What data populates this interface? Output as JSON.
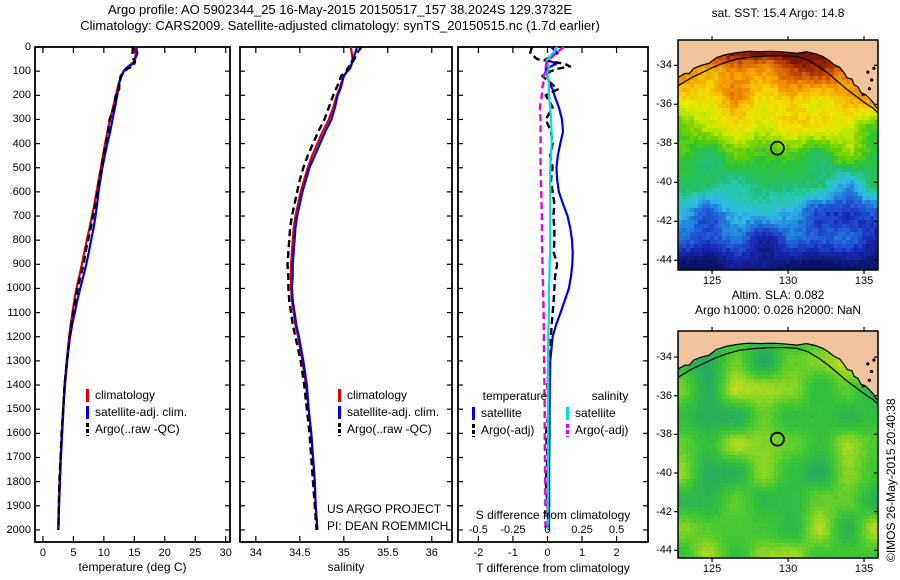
{
  "title": {
    "line1": "Argo profile: AO 5902344_25 16-May-2015 20150517_157 38.2024S 129.3732E",
    "line2": "Climatology: CARS2009. Satellite-adjusted climatology: synTS_20150515.nc (1.7d earlier)"
  },
  "annotations": {
    "line1": "US ARGO PROJECT",
    "line2": "PI: DEAN ROEMMICH"
  },
  "credit": "©IMOS 26-May-2015 20:40:38",
  "colors": {
    "red": "#dd0000",
    "blue": "#0000dd",
    "black": "#000000",
    "cyan": "#00dcdc",
    "magenta": "#e600e6",
    "land": "#f2c49e",
    "frame": "#000000"
  },
  "chart_data": {
    "type": "line",
    "depths": [
      0,
      25,
      50,
      60,
      70,
      80,
      90,
      100,
      120,
      150,
      175,
      200,
      250,
      300,
      350,
      400,
      450,
      500,
      550,
      600,
      650,
      700,
      750,
      800,
      850,
      900,
      950,
      1000,
      1050,
      1100,
      1150,
      1200,
      1300,
      1400,
      1500,
      1600,
      1700,
      1800,
      1900,
      1950,
      2000
    ],
    "ylim": [
      0,
      2050
    ],
    "yticks": [
      0,
      100,
      200,
      300,
      400,
      500,
      600,
      700,
      800,
      900,
      1000,
      1100,
      1200,
      1300,
      1400,
      1500,
      1600,
      1700,
      1800,
      1900,
      2000
    ],
    "panels": [
      {
        "id": "temperature",
        "xlabel": "temperature (deg C)",
        "xlim": [
          -1.3,
          30.7
        ],
        "xticks": [
          0,
          5,
          10,
          15,
          20,
          25,
          30
        ],
        "series": [
          {
            "name": "climatology",
            "color": "red",
            "style": "solid",
            "values": [
              15.2,
              15.2,
              15.15,
              15.0,
              14.5,
              14.0,
              13.6,
              13.3,
              12.9,
              12.45,
              12.2,
              12.0,
              11.5,
              11.0,
              10.6,
              10.2,
              9.85,
              9.5,
              9.15,
              8.8,
              8.45,
              8.05,
              7.65,
              7.2,
              6.8,
              6.4,
              5.95,
              5.5,
              5.15,
              4.85,
              4.55,
              4.3,
              3.9,
              3.55,
              3.3,
              3.1,
              2.9,
              2.75,
              2.6,
              2.55,
              2.5
            ]
          },
          {
            "name": "satellite-adj. clim.",
            "color": "blue",
            "style": "solid",
            "values": [
              15.3,
              15.5,
              15.1,
              15.1,
              14.75,
              14.1,
              13.55,
              13.25,
              12.9,
              12.5,
              12.35,
              12.2,
              11.83,
              11.42,
              11.05,
              10.57,
              10.15,
              9.76,
              9.43,
              9.13,
              8.9,
              8.63,
              8.31,
              7.91,
              7.53,
              7.12,
              6.63,
              6.12,
              5.65,
              5.23,
              4.8,
              4.45,
              3.98,
              3.62,
              3.36,
              3.16,
              2.95,
              2.8,
              2.65,
              2.59,
              2.55
            ]
          },
          {
            "name": "Argo(..raw -QC)",
            "color": "black",
            "style": "dashed",
            "values": [
              14.75,
              14.7,
              14.85,
              15.1,
              15.0,
              14.65,
              13.9,
              13.4,
              12.75,
              12.55,
              12.5,
              11.95,
              11.65,
              10.95,
              10.7,
              10.35,
              9.93,
              9.65,
              9.25,
              8.95,
              8.65,
              8.22,
              7.85,
              7.4,
              6.98,
              6.68,
              6.17,
              5.7,
              5.33,
              5.0,
              4.67,
              4.4,
              3.95,
              3.55,
              3.34,
              3.06,
              2.9,
              2.7,
              2.6,
              2.58,
              2.54
            ]
          }
        ]
      },
      {
        "id": "salinity",
        "xlabel": "salinity",
        "xlim": [
          33.82,
          36.23
        ],
        "xticks": [
          34,
          34.5,
          35,
          35.5,
          36
        ],
        "series": [
          {
            "name": "climatology",
            "color": "red",
            "style": "solid",
            "values": [
              35.08,
              35.09,
              35.1,
              35.1,
              35.09,
              35.07,
              35.06,
              35.04,
              35.0,
              34.97,
              34.95,
              34.92,
              34.88,
              34.83,
              34.76,
              34.7,
              34.64,
              34.59,
              34.55,
              34.51,
              34.48,
              34.45,
              34.43,
              34.42,
              34.41,
              34.4,
              34.4,
              34.4,
              34.41,
              34.43,
              34.45,
              34.48,
              34.53,
              34.57,
              34.6,
              34.63,
              34.65,
              34.67,
              34.68,
              34.69,
              34.7
            ]
          },
          {
            "name": "satellite-adj. clim.",
            "color": "blue",
            "style": "solid",
            "values": [
              35.15,
              35.13,
              35.1,
              35.09,
              35.09,
              35.08,
              35.07,
              35.04,
              35.0,
              34.98,
              34.96,
              34.93,
              34.9,
              34.86,
              34.79,
              34.73,
              34.67,
              34.61,
              34.57,
              34.53,
              34.5,
              34.47,
              34.45,
              34.44,
              34.43,
              34.42,
              34.42,
              34.41,
              34.42,
              34.44,
              34.46,
              34.49,
              34.54,
              34.58,
              34.6,
              34.63,
              34.65,
              34.67,
              34.68,
              34.69,
              34.7
            ]
          },
          {
            "name": "Argo(..raw -QC)",
            "color": "black",
            "style": "dashed",
            "values": [
              35.2,
              35.15,
              35.12,
              35.1,
              35.08,
              35.06,
              35.04,
              35.03,
              34.97,
              34.94,
              34.91,
              34.88,
              34.83,
              34.78,
              34.71,
              34.65,
              34.59,
              34.54,
              34.5,
              34.47,
              34.44,
              34.41,
              34.39,
              34.38,
              34.37,
              34.36,
              34.37,
              34.37,
              34.38,
              34.4,
              34.42,
              34.45,
              34.51,
              34.55,
              34.58,
              34.61,
              34.63,
              34.65,
              34.67,
              34.68,
              34.69
            ]
          }
        ]
      },
      {
        "id": "difference",
        "xlabel": "T difference from climatology",
        "xlabel2": "S difference from climatology",
        "xlim": [
          -2.59,
          2.91
        ],
        "xticks": [
          -2,
          -1,
          0,
          1,
          2
        ],
        "xticks2": [
          -0.5,
          -0.25,
          0,
          0.25,
          0.5
        ],
        "s_to_t_scale": 4,
        "group_headers": [
          "temperature",
          "salinity"
        ],
        "series": [
          {
            "name": "satellite",
            "group": "temperature",
            "unit": "T",
            "color": "blue",
            "style": "solid",
            "values": [
              0.1,
              0.3,
              -0.05,
              0.1,
              0.25,
              0.1,
              -0.05,
              -0.05,
              0.0,
              0.05,
              0.15,
              0.2,
              0.33,
              0.42,
              0.45,
              0.37,
              0.3,
              0.26,
              0.28,
              0.33,
              0.45,
              0.58,
              0.66,
              0.71,
              0.73,
              0.72,
              0.68,
              0.62,
              0.5,
              0.38,
              0.25,
              0.15,
              0.08,
              0.07,
              0.06,
              0.06,
              0.05,
              0.05,
              0.05,
              0.04,
              0.05
            ]
          },
          {
            "name": "Argo(-adj)",
            "group": "temperature",
            "unit": "T",
            "color": "black",
            "style": "dashed",
            "values": [
              -0.45,
              -0.5,
              -0.3,
              0.1,
              0.5,
              0.65,
              0.3,
              0.1,
              -0.15,
              0.1,
              0.3,
              -0.05,
              0.15,
              -0.05,
              0.1,
              0.15,
              0.08,
              0.15,
              0.1,
              0.15,
              0.2,
              0.17,
              0.2,
              0.2,
              0.18,
              0.28,
              0.22,
              0.2,
              0.18,
              0.15,
              0.12,
              0.1,
              0.05,
              0.0,
              0.04,
              -0.04,
              0.0,
              -0.05,
              0.0,
              0.03,
              0.04
            ]
          },
          {
            "name": "satellite",
            "group": "salinity",
            "unit": "S",
            "color": "cyan",
            "style": "solid",
            "values": [
              0.07,
              0.04,
              0.0,
              -0.01,
              0.0,
              0.01,
              0.01,
              0.0,
              0.0,
              0.01,
              0.01,
              0.01,
              0.02,
              0.025,
              0.03,
              0.03,
              0.025,
              0.02,
              0.02,
              0.02,
              0.02,
              0.02,
              0.02,
              0.02,
              0.02,
              0.015,
              0.015,
              0.01,
              0.01,
              0.01,
              0.008,
              0.006,
              0.005,
              0.005,
              0.004,
              0.004,
              0.003,
              0.003,
              0.002,
              0.002,
              0.002
            ]
          },
          {
            "name": "Argo(-adj)",
            "group": "salinity",
            "unit": "S",
            "color": "magenta",
            "style": "dashed",
            "values": [
              0.12,
              0.06,
              0.02,
              0.0,
              -0.01,
              -0.01,
              -0.02,
              -0.01,
              -0.03,
              -0.03,
              -0.04,
              -0.04,
              -0.055,
              -0.05,
              -0.05,
              -0.05,
              -0.05,
              -0.05,
              -0.048,
              -0.045,
              -0.043,
              -0.04,
              -0.04,
              -0.04,
              -0.038,
              -0.036,
              -0.034,
              -0.032,
              -0.03,
              -0.028,
              -0.027,
              -0.026,
              -0.024,
              -0.022,
              -0.02,
              -0.02,
              -0.018,
              -0.016,
              -0.015,
              -0.015,
              -0.015
            ]
          }
        ]
      }
    ],
    "maps": [
      {
        "id": "sst",
        "title": "sat. SST: 15.4 Argo: 14.8",
        "lon_ticks": [
          125,
          130,
          135
        ],
        "lat_ticks": [
          -34,
          -36,
          -38,
          -40,
          -42,
          -44
        ],
        "lonlim": [
          122.76,
          135.92
        ],
        "latlim": [
          -32.7,
          -44.5
        ],
        "base": "latitude",
        "seed": 13,
        "noise": {
          "smooth": 0.22,
          "speckle": 0.055
        },
        "palette": [
          [
            0,
            "#7a1400"
          ],
          [
            0.05,
            "#a63200"
          ],
          [
            0.1,
            "#d25a00"
          ],
          [
            0.16,
            "#f08c00"
          ],
          [
            0.22,
            "#f5be00"
          ],
          [
            0.28,
            "#eee600"
          ],
          [
            0.34,
            "#b9e600"
          ],
          [
            0.4,
            "#6ed200"
          ],
          [
            0.47,
            "#2fc332"
          ],
          [
            0.54,
            "#23bd6e"
          ],
          [
            0.6,
            "#23c8af"
          ],
          [
            0.66,
            "#2fb9e6"
          ],
          [
            0.72,
            "#2387dc"
          ],
          [
            0.79,
            "#1e55d2"
          ],
          [
            0.86,
            "#1928b4"
          ],
          [
            0.93,
            "#101e8c"
          ],
          [
            1,
            "#0a1464"
          ]
        ]
      },
      {
        "id": "sla",
        "title_line1": "Altim. SLA: 0.082",
        "title_line2": "Argo h1000: 0.026 h2000: NaN",
        "lon_ticks": [
          125,
          130,
          135
        ],
        "lat_ticks": [
          -34,
          -36,
          -38,
          -40,
          -42,
          -44
        ],
        "lonlim": [
          122.76,
          135.92
        ],
        "latlim": [
          -32.65,
          -44.4
        ],
        "base": "flat",
        "seed": 29,
        "noise": {
          "smooth": 0.62,
          "speckle": 0.04
        },
        "palette": [
          [
            0,
            "#1e9696"
          ],
          [
            0.2,
            "#28aa64"
          ],
          [
            0.38,
            "#32be3c"
          ],
          [
            0.5,
            "#46c832"
          ],
          [
            0.62,
            "#78d226"
          ],
          [
            0.75,
            "#b4dc1e"
          ],
          [
            0.88,
            "#e6dc14"
          ],
          [
            1,
            "#f0a50a"
          ]
        ]
      }
    ],
    "map_common": {
      "marker": {
        "lon": 129.3,
        "lat": -38.25
      },
      "coast": [
        [
          122.76,
          -34.62
        ],
        [
          123.2,
          -34.42
        ],
        [
          123.5,
          -34.42
        ],
        [
          123.8,
          -34.15
        ],
        [
          124.3,
          -34.0
        ],
        [
          124.8,
          -33.9
        ],
        [
          125.3,
          -33.6
        ],
        [
          125.9,
          -33.45
        ],
        [
          126.6,
          -33.35
        ],
        [
          127.4,
          -33.28
        ],
        [
          128.2,
          -33.3
        ],
        [
          129.0,
          -33.28
        ],
        [
          129.8,
          -33.32
        ],
        [
          130.6,
          -33.38
        ],
        [
          131.2,
          -33.3
        ],
        [
          131.8,
          -33.4
        ],
        [
          132.3,
          -33.55
        ],
        [
          132.7,
          -33.75
        ],
        [
          133.0,
          -33.95
        ],
        [
          133.4,
          -34.1
        ],
        [
          133.7,
          -34.4
        ],
        [
          133.9,
          -34.65
        ],
        [
          134.2,
          -34.7
        ],
        [
          134.35,
          -35.0
        ],
        [
          134.6,
          -35.1
        ],
        [
          134.8,
          -35.4
        ],
        [
          135.1,
          -35.5
        ],
        [
          135.3,
          -35.65
        ],
        [
          135.6,
          -35.9
        ],
        [
          135.75,
          -36.1
        ],
        [
          135.92,
          -36.25
        ]
      ],
      "contour": [
        [
          122.76,
          -35.05
        ],
        [
          123.6,
          -34.65
        ],
        [
          124.4,
          -34.35
        ],
        [
          125.2,
          -34.05
        ],
        [
          126.0,
          -33.82
        ],
        [
          126.8,
          -33.65
        ],
        [
          127.6,
          -33.57
        ],
        [
          128.6,
          -33.52
        ],
        [
          129.6,
          -33.5
        ],
        [
          130.6,
          -33.55
        ],
        [
          131.3,
          -33.72
        ],
        [
          132.0,
          -34.05
        ],
        [
          132.7,
          -34.45
        ],
        [
          133.3,
          -34.85
        ],
        [
          133.9,
          -35.25
        ],
        [
          134.5,
          -35.6
        ],
        [
          135.1,
          -35.95
        ],
        [
          135.6,
          -36.2
        ],
        [
          135.92,
          -36.45
        ]
      ],
      "islands": [
        [
          135.25,
          -34.35
        ],
        [
          135.5,
          -34.75
        ],
        [
          135.35,
          -35.2
        ],
        [
          134.95,
          -35.5
        ],
        [
          135.65,
          -34.15
        ]
      ]
    }
  }
}
